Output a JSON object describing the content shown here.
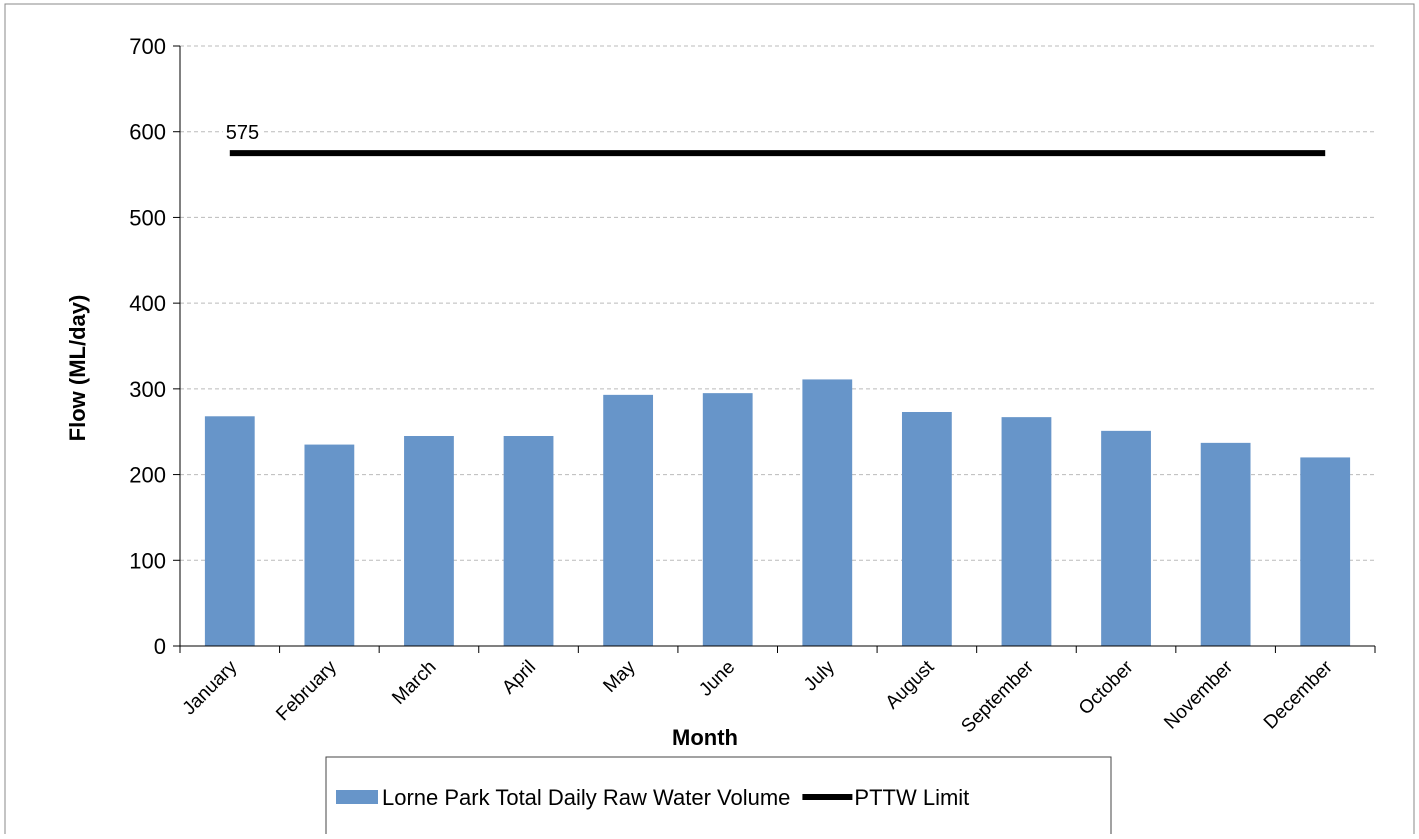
{
  "chart_data": {
    "type": "bar",
    "xlabel": "Month",
    "ylabel": "Flow (ML/day)",
    "categories": [
      "January",
      "February",
      "March",
      "April",
      "May",
      "June",
      "July",
      "August",
      "September",
      "October",
      "November",
      "December"
    ],
    "series": [
      {
        "name": "Lorne Park Total Daily Raw Water Volume",
        "type": "bar",
        "color": "#6795c9",
        "values": [
          268,
          235,
          245,
          245,
          293,
          295,
          311,
          273,
          267,
          251,
          237,
          220
        ]
      },
      {
        "name": "PTTW Limit",
        "type": "line",
        "color": "#000000",
        "values": [
          575,
          575,
          575,
          575,
          575,
          575,
          575,
          575,
          575,
          575,
          575,
          575
        ]
      }
    ],
    "ylim": [
      0,
      700
    ],
    "yticks": [
      0,
      100,
      200,
      300,
      400,
      500,
      600,
      700
    ],
    "grid": true,
    "legend": "bottom"
  }
}
